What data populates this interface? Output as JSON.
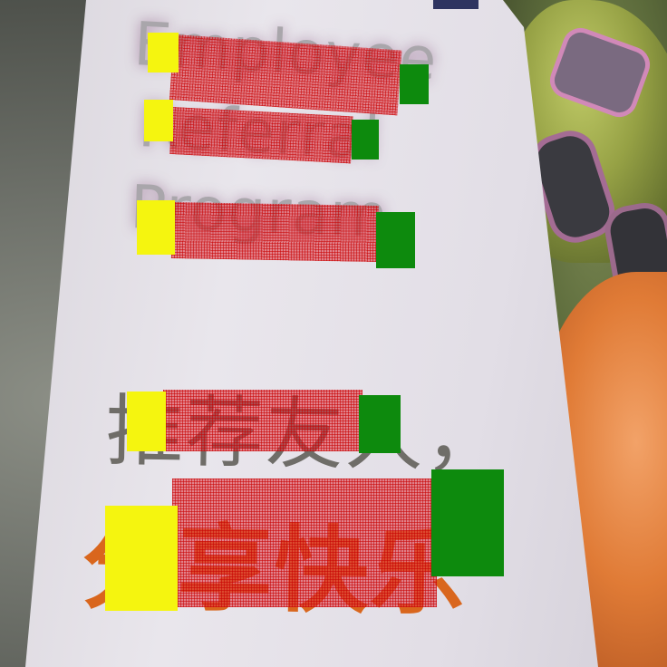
{
  "poster": {
    "lines": [
      {
        "id": "employee",
        "text": "Employee"
      },
      {
        "id": "referral",
        "text": "Referral"
      },
      {
        "id": "program",
        "text": "Program"
      },
      {
        "id": "tuijian",
        "text": "推荐友人，"
      },
      {
        "id": "fenxiang",
        "text": "分享快乐"
      }
    ]
  },
  "overlay": {
    "colors": {
      "word_fill": "#dc323c",
      "start_marker": "#f5f50f",
      "end_marker": "#0d8a0d"
    }
  }
}
